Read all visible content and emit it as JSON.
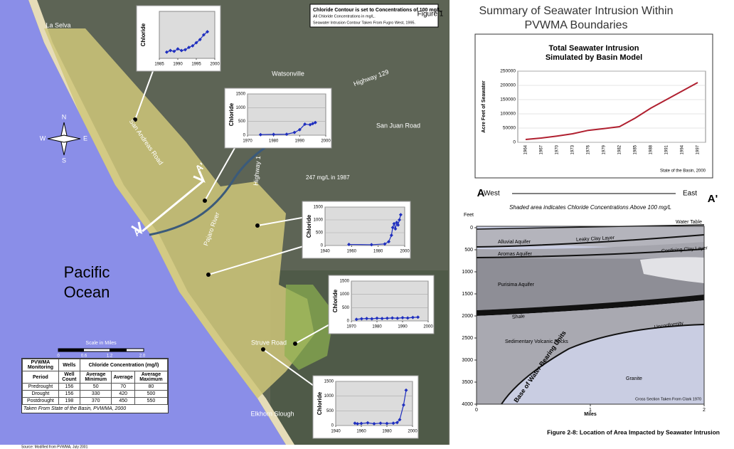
{
  "figure_label": "Figure 1",
  "source": "Source: Modified from PVWMA, July 2001",
  "title_lines": [
    "Summary of Seawater Intrusion Within",
    "PVWMA Boundaries"
  ],
  "map": {
    "notes": [
      "Chloride Contour is set to Concentrations of 100 mg/L.",
      "All Chloride Concentrations in mg/L.",
      "Seawater Intrusion Contour Taken From Fugro West, 1995."
    ],
    "labels": [
      "La Selva",
      "Watsonville",
      "Highway 129",
      "San Juan Road",
      "San Andreas Road",
      "Highway 1",
      "Pajaro River",
      "Struve Road",
      "Elkhorn Slough"
    ],
    "ocean": [
      "Pacific",
      "Ocean"
    ],
    "annotation": "247 mg/L in 1987",
    "section_start": "A",
    "section_end": "A'",
    "compass": [
      "N",
      "E",
      "S",
      "W"
    ],
    "scale_title": "Scale in Miles",
    "scale_ticks": [
      "0",
      "0.6",
      "1.2",
      "2.0"
    ]
  },
  "table": {
    "header1": [
      "PVWMA Monitoring",
      "Wells",
      "Chloride Concentration (mg/l)"
    ],
    "header2": [
      "Period",
      "Well Count",
      "Average Minimum",
      "Average",
      "Average Maximum"
    ],
    "rows": [
      [
        "Predrought",
        156,
        50,
        70,
        80
      ],
      [
        "Drought",
        156,
        330,
        420,
        500
      ],
      [
        "Postdrought",
        198,
        370,
        450,
        550
      ]
    ],
    "footer": "Taken From State of the Basin, PVWMA, 2000"
  },
  "chart_data": [
    {
      "type": "line",
      "y_label": "Chloride",
      "x": [
        1987,
        1988,
        1989,
        1990,
        1991,
        1992,
        1993,
        1994,
        1995,
        1996,
        1997,
        1998
      ],
      "values": [
        40,
        50,
        45,
        60,
        50,
        55,
        70,
        80,
        100,
        120,
        150,
        170
      ],
      "color": "#1f2fbf",
      "xlim": [
        1985,
        2000
      ],
      "xticks": [
        1985,
        1990,
        1995,
        2000
      ],
      "ylim": [
        0,
        300
      ]
    },
    {
      "type": "line",
      "y_label": "Chloride",
      "x": [
        1975,
        1980,
        1985,
        1988,
        1990,
        1992,
        1994,
        1995,
        1996
      ],
      "values": [
        20,
        30,
        35,
        100,
        200,
        400,
        380,
        420,
        460
      ],
      "color": "#1f2fbf",
      "xlim": [
        1970,
        2000
      ],
      "xticks": [
        1970,
        1980,
        1990,
        2000
      ],
      "ylim": [
        0,
        1500
      ],
      "yticks": [
        0,
        500,
        1000,
        1500
      ],
      "grid": true
    },
    {
      "type": "line",
      "y_label": "Chloride",
      "x": [
        1958,
        1975,
        1985,
        1988,
        1990,
        1991,
        1992,
        1993,
        1994,
        1995,
        1996,
        1997
      ],
      "values": [
        40,
        30,
        60,
        150,
        400,
        700,
        850,
        650,
        900,
        800,
        1000,
        1200
      ],
      "color": "#1f2fbf",
      "xlim": [
        1940,
        2000
      ],
      "xticks": [
        1940,
        1960,
        1980,
        2000
      ],
      "ylim": [
        0,
        1500
      ],
      "yticks": [
        0,
        500,
        1000,
        1500
      ],
      "grid": true
    },
    {
      "type": "line",
      "y_label": "Chloride",
      "x": [
        1972,
        1974,
        1976,
        1978,
        1980,
        1982,
        1984,
        1986,
        1988,
        1990,
        1992,
        1994,
        1996
      ],
      "values": [
        60,
        80,
        90,
        80,
        100,
        90,
        100,
        110,
        100,
        120,
        110,
        130,
        140
      ],
      "color": "#1f2fbf",
      "xlim": [
        1970,
        2000
      ],
      "xticks": [
        1970,
        1980,
        1990,
        2000
      ],
      "ylim": [
        0,
        1500
      ],
      "yticks": [
        0,
        500,
        1000,
        1500
      ],
      "grid": true
    },
    {
      "type": "line",
      "y_label": "Chloride",
      "x": [
        1955,
        1957,
        1960,
        1965,
        1970,
        1975,
        1980,
        1985,
        1988,
        1990,
        1993,
        1995
      ],
      "values": [
        80,
        60,
        70,
        90,
        60,
        80,
        70,
        80,
        100,
        200,
        700,
        1200
      ],
      "color": "#1f2fbf",
      "xlim": [
        1940,
        2000
      ],
      "xticks": [
        1940,
        1960,
        1980,
        2000
      ],
      "ylim": [
        0,
        1500
      ],
      "yticks": [
        0,
        500,
        1000,
        1500
      ],
      "grid": true
    },
    {
      "type": "line",
      "title": [
        "Total Seawater Intrusion",
        "Simulated by Basin Model"
      ],
      "y_label": "Acre Feet of Seawater",
      "categories": [
        "1964",
        "1967",
        "1970",
        "1973",
        "1976",
        "1979",
        "1982",
        "1985",
        "1988",
        "1991",
        "1994",
        "1997"
      ],
      "values": [
        10000,
        15000,
        22000,
        30000,
        42000,
        48000,
        55000,
        85000,
        120000,
        150000,
        180000,
        210000
      ],
      "color": "#b02030",
      "ylim": [
        0,
        250000
      ],
      "yticks": [
        0,
        50000,
        100000,
        150000,
        200000,
        250000
      ],
      "grid": true,
      "note": "State of the Basin, 2000"
    }
  ],
  "cross_section": {
    "header_left": "A",
    "header_west": "West",
    "header_east": "East",
    "header_right": "A'",
    "subtitle": "Shaded area indicates Chloride Concentrations Above 100 mg/L",
    "y_label": "Feet",
    "ylim": [
      0,
      4000
    ],
    "yticks": [
      0,
      500,
      1000,
      1500,
      2000,
      2500,
      3000,
      3500,
      4000
    ],
    "xlim": [
      0,
      2
    ],
    "xticks": [
      0,
      1,
      2
    ],
    "x_label": "Miles",
    "layers": [
      "Water Table",
      "Alluvial Aquifer",
      "Leaky Clay Layer",
      "Aromas Aquifer",
      "Confining Clay Layer",
      "Purisima Aquifer",
      "Shale",
      "Sedimentary Volcanic Rocks",
      "Unconformity",
      "Base of Water Bearing Units",
      "Granite"
    ],
    "note": "Cross Section Taken From Clark 1970"
  },
  "caption": "Figure 2-8: Location of Area Impacted by Seawater Intrusion"
}
